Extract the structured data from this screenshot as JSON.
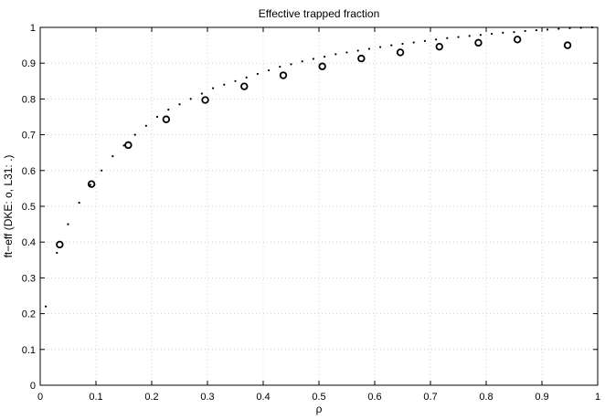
{
  "chart_data": {
    "type": "scatter",
    "title": "Effective trapped fraction",
    "xlabel": "ρ",
    "ylabel": "ft−eff (DKE: o, L31: .)",
    "xlim": [
      0,
      1
    ],
    "ylim": [
      0,
      1
    ],
    "x_ticks": [
      "0",
      "0.1",
      "0.2",
      "0.3",
      "0.4",
      "0.5",
      "0.6",
      "0.7",
      "0.8",
      "0.9",
      "1"
    ],
    "y_ticks": [
      "0",
      "0.1",
      "0.2",
      "0.3",
      "0.4",
      "0.5",
      "0.6",
      "0.7",
      "0.8",
      "0.9",
      "1"
    ],
    "grid": true,
    "series": [
      {
        "marker": "o",
        "x": [
          0.035,
          0.092,
          0.158,
          0.226,
          0.296,
          0.366,
          0.436,
          0.506,
          0.576,
          0.646,
          0.716,
          0.786,
          0.856,
          0.946
        ],
        "y": [
          0.393,
          0.562,
          0.671,
          0.743,
          0.797,
          0.835,
          0.866,
          0.891,
          0.913,
          0.93,
          0.946,
          0.957,
          0.966,
          0.95
        ]
      },
      {
        "marker": ".",
        "x": [
          0.01,
          0.03,
          0.05,
          0.07,
          0.09,
          0.11,
          0.13,
          0.15,
          0.17,
          0.19,
          0.21,
          0.23,
          0.25,
          0.27,
          0.29,
          0.31,
          0.33,
          0.35,
          0.37,
          0.39,
          0.41,
          0.43,
          0.45,
          0.47,
          0.49,
          0.51,
          0.53,
          0.55,
          0.57,
          0.59,
          0.61,
          0.63,
          0.65,
          0.67,
          0.69,
          0.71,
          0.73,
          0.75,
          0.77,
          0.79,
          0.81,
          0.83,
          0.85,
          0.87,
          0.89,
          0.91,
          0.93,
          0.95,
          0.97,
          0.99
        ],
        "y": [
          0.22,
          0.37,
          0.45,
          0.51,
          0.56,
          0.6,
          0.64,
          0.67,
          0.7,
          0.725,
          0.75,
          0.77,
          0.785,
          0.8,
          0.815,
          0.83,
          0.84,
          0.85,
          0.86,
          0.87,
          0.88,
          0.89,
          0.897,
          0.905,
          0.912,
          0.918,
          0.925,
          0.93,
          0.935,
          0.94,
          0.945,
          0.95,
          0.954,
          0.958,
          0.962,
          0.966,
          0.97,
          0.973,
          0.976,
          0.979,
          0.982,
          0.985,
          0.987,
          0.99,
          0.992,
          0.994,
          0.996,
          0.998,
          0.999,
          1.0
        ]
      }
    ]
  }
}
